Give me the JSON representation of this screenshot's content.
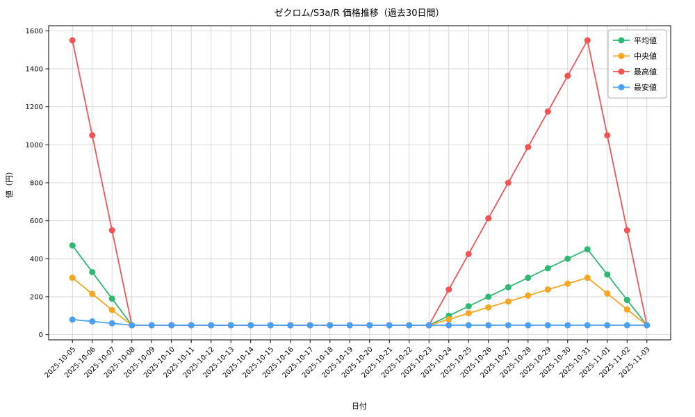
{
  "chart_data": {
    "type": "line",
    "title": "ゼクロム/S3a/R 価格推移（過去30日間）",
    "xlabel": "日付",
    "ylabel": "値（円）",
    "grid": true,
    "legend_position": "upper right",
    "ylim": [
      0,
      1600
    ],
    "yticks": [
      0,
      200,
      400,
      600,
      800,
      1000,
      1200,
      1400,
      1600
    ],
    "x": [
      "2025-10-05",
      "2025-10-06",
      "2025-10-07",
      "2025-10-08",
      "2025-10-09",
      "2025-10-10",
      "2025-10-11",
      "2025-10-12",
      "2025-10-13",
      "2025-10-14",
      "2025-10-15",
      "2025-10-16",
      "2025-10-17",
      "2025-10-18",
      "2025-10-19",
      "2025-10-20",
      "2025-10-21",
      "2025-10-22",
      "2025-10-23",
      "2025-10-24",
      "2025-10-25",
      "2025-10-26",
      "2025-10-27",
      "2025-10-28",
      "2025-10-29",
      "2025-10-30",
      "2025-10-31",
      "2025-11-01",
      "2025-11-02",
      "2025-11-03"
    ],
    "series": [
      {
        "key": "average",
        "name": "平均値",
        "color": "#2eb872",
        "values": [
          470,
          330,
          190,
          50,
          50,
          50,
          50,
          50,
          50,
          50,
          50,
          50,
          50,
          50,
          50,
          50,
          50,
          50,
          50,
          100,
          150,
          200,
          250,
          300,
          350,
          400,
          450,
          317,
          183,
          50
        ]
      },
      {
        "key": "median",
        "name": "中央値",
        "color": "#f5a623",
        "values": [
          300,
          215,
          130,
          50,
          50,
          50,
          50,
          50,
          50,
          50,
          50,
          50,
          50,
          50,
          50,
          50,
          50,
          50,
          50,
          81,
          113,
          144,
          175,
          206,
          238,
          269,
          300,
          217,
          133,
          50
        ]
      },
      {
        "key": "max",
        "name": "最高値",
        "color": "#f25454",
        "values": [
          1550,
          1050,
          550,
          50,
          50,
          50,
          50,
          50,
          50,
          50,
          50,
          50,
          50,
          50,
          50,
          50,
          50,
          50,
          50,
          238,
          425,
          613,
          800,
          988,
          1175,
          1363,
          1550,
          1050,
          550,
          50
        ]
      },
      {
        "key": "min",
        "name": "最安値",
        "color": "#4a9ff5",
        "values": [
          80,
          70,
          60,
          50,
          50,
          50,
          50,
          50,
          50,
          50,
          50,
          50,
          50,
          50,
          50,
          50,
          50,
          50,
          50,
          50,
          50,
          50,
          50,
          50,
          50,
          50,
          50,
          50,
          50,
          50
        ]
      }
    ],
    "colors": {
      "grid": "#cccccc",
      "spine": "#000000",
      "background": "#ffffff"
    }
  }
}
